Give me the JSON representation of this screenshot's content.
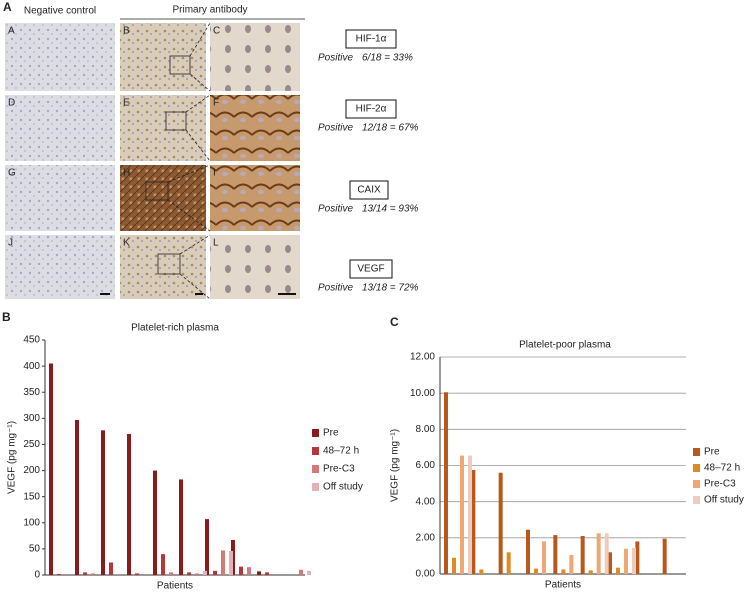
{
  "panel_a": {
    "label": "A",
    "column_headers": [
      "Negative control",
      "Primary antibody"
    ],
    "panel_letters": [
      "A",
      "B",
      "C",
      "D",
      "E",
      "F",
      "G",
      "H",
      "I",
      "J",
      "K",
      "L"
    ],
    "markers": [
      {
        "name": "HIF-1α",
        "positive": "Positive",
        "result": "6/18 = 33%"
      },
      {
        "name": "HIF-2α",
        "positive": "Positive",
        "result": "12/18 = 67%"
      },
      {
        "name": "CAIX",
        "positive": "Positive",
        "result": "13/14 = 93%"
      },
      {
        "name": "VEGF",
        "positive": "Positive",
        "result": "13/18 = 72%"
      }
    ]
  },
  "chart_data": [
    {
      "type": "bar",
      "panel_label": "B",
      "title": "Platelet-rich plasma",
      "y_label": "VEGF (pg mg⁻¹)",
      "x_label": "Patients",
      "categories": [
        null,
        null,
        null,
        null,
        null,
        null,
        null,
        null,
        null,
        null
      ],
      "ylim": [
        0,
        450
      ],
      "yticks": [
        0,
        50,
        100,
        150,
        200,
        250,
        300,
        350,
        400,
        450
      ],
      "grid": false,
      "series": [
        {
          "name": "Pre",
          "color": "#8b1c1c",
          "values": [
            405,
            297,
            277,
            270,
            200,
            183,
            107,
            67,
            7,
            null
          ]
        },
        {
          "name": "48–72 h",
          "color": "#b2383a",
          "values": [
            2,
            5,
            24,
            3,
            40,
            5,
            8,
            16,
            5,
            null
          ]
        },
        {
          "name": "Pre-C3",
          "color": "#d4787c",
          "values": [
            null,
            3,
            null,
            null,
            5,
            3,
            47,
            15,
            null,
            10
          ]
        },
        {
          "name": "Off study",
          "color": "#e3b0bc",
          "values": [
            null,
            null,
            null,
            null,
            null,
            8,
            46,
            null,
            null,
            8
          ]
        }
      ]
    },
    {
      "type": "bar",
      "panel_label": "C",
      "title": "Platelet-poor plasma",
      "y_label": "VEGF (pg mg⁻¹)",
      "x_label": "Patients",
      "categories": [
        null,
        null,
        null,
        null,
        null,
        null,
        null,
        null,
        null
      ],
      "ylim": [
        0,
        12
      ],
      "yticks": [
        {
          "value": 0,
          "label": "0.00"
        },
        {
          "value": 2,
          "label": "2.00"
        },
        {
          "value": 4,
          "label": "4.00"
        },
        {
          "value": 6,
          "label": "6.00"
        },
        {
          "value": 8,
          "label": "8.00"
        },
        {
          "value": 10,
          "label": "10.00"
        },
        {
          "value": 12,
          "label": "12.00"
        }
      ],
      "grid": true,
      "series": [
        {
          "name": "Pre",
          "color": "#b8581a",
          "values": [
            10.05,
            5.75,
            5.6,
            2.45,
            2.15,
            2.1,
            1.2,
            1.8,
            1.95
          ]
        },
        {
          "name": "48–72 h",
          "color": "#e08a24",
          "values": [
            0.9,
            0.25,
            1.2,
            0.3,
            0.25,
            0.2,
            0.35,
            null,
            null
          ]
        },
        {
          "name": "Pre-C3",
          "color": "#f0a774",
          "values": [
            6.55,
            null,
            null,
            1.8,
            1.05,
            2.25,
            1.4,
            null,
            null
          ]
        },
        {
          "name": "Off study",
          "color": "#efcbbd",
          "values": [
            6.55,
            null,
            null,
            null,
            null,
            2.25,
            1.45,
            null,
            null
          ]
        }
      ]
    }
  ]
}
